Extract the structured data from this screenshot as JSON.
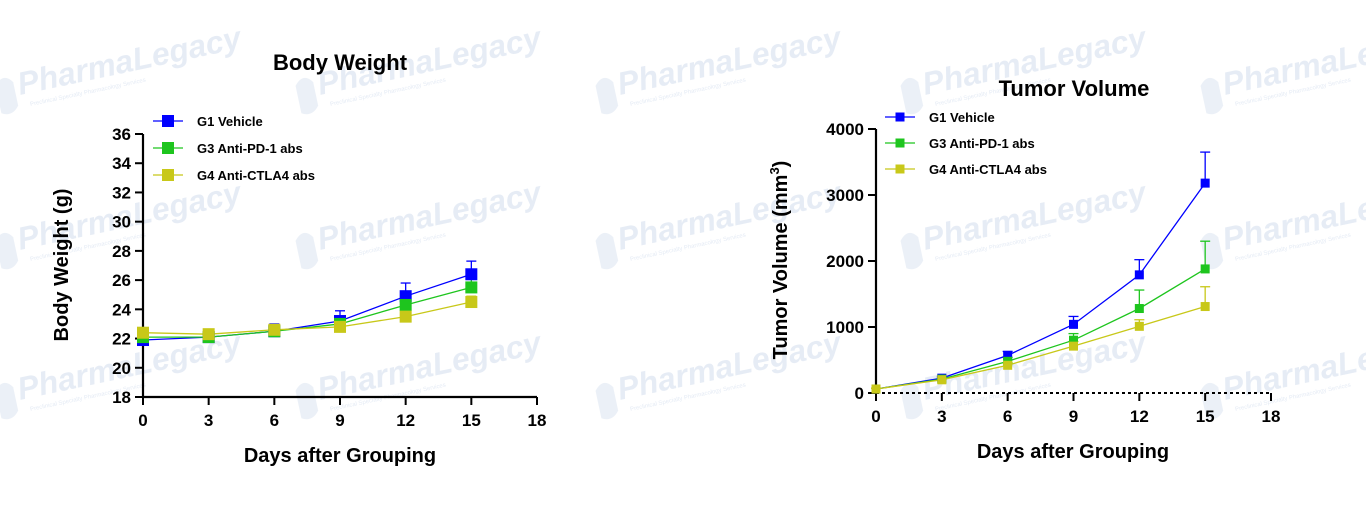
{
  "watermark": {
    "text": "PharmaLegacy",
    "subtext": "Preclinical Specialty Pharmacology Services"
  },
  "chart_data": [
    {
      "type": "line",
      "title": "Body Weight",
      "xlabel": "Days after Grouping",
      "ylabel": "Body Weight (g)",
      "xlim": [
        0,
        18
      ],
      "ylim": [
        18,
        36
      ],
      "xticks": [
        0,
        3,
        6,
        9,
        12,
        15,
        18
      ],
      "yticks": [
        18,
        20,
        22,
        24,
        26,
        28,
        30,
        32,
        34,
        36
      ],
      "legend_position": "top-left",
      "grid": false,
      "x": [
        0,
        3,
        6,
        9,
        12,
        15
      ],
      "series": [
        {
          "name": "G1 Vehicle",
          "color": "#0000ff",
          "values": [
            21.9,
            22.1,
            22.5,
            23.2,
            24.9,
            26.4
          ],
          "errors": [
            0.2,
            0.2,
            0.5,
            0.7,
            0.9,
            0.9
          ]
        },
        {
          "name": "G3 Anti-PD-1 abs",
          "color": "#1ec51e",
          "values": [
            22.1,
            22.1,
            22.5,
            23.0,
            24.3,
            25.5
          ],
          "errors": [
            0.2,
            0.2,
            0.3,
            0.4,
            0.5,
            0.6
          ]
        },
        {
          "name": "G4 Anti-CTLA4 abs",
          "color": "#c8c819",
          "values": [
            22.4,
            22.3,
            22.6,
            22.8,
            23.5,
            24.5
          ],
          "errors": [
            0.2,
            0.2,
            0.2,
            0.3,
            0.3,
            0.4
          ]
        }
      ]
    },
    {
      "type": "line",
      "title": "Tumor Volume",
      "xlabel": "Days after Grouping",
      "ylabel_main": "Tumor Volume (mm",
      "ylabel_sup": "3",
      "ylabel_end": ")",
      "xlim": [
        0,
        18
      ],
      "ylim": [
        0,
        4000
      ],
      "xticks": [
        0,
        3,
        6,
        9,
        12,
        15,
        18
      ],
      "yticks": [
        0,
        1000,
        2000,
        3000,
        4000
      ],
      "legend_position": "top-left",
      "grid": false,
      "x": [
        0,
        3,
        6,
        9,
        12,
        15
      ],
      "series": [
        {
          "name": "G1 Vehicle",
          "color": "#0000ff",
          "values": [
            60,
            225,
            570,
            1040,
            1790,
            3180
          ],
          "errors": [
            10,
            30,
            60,
            120,
            230,
            470
          ]
        },
        {
          "name": "G3 Anti-PD-1 abs",
          "color": "#1ec51e",
          "values": [
            60,
            210,
            480,
            800,
            1280,
            1880
          ],
          "errors": [
            10,
            25,
            60,
            100,
            280,
            420
          ]
        },
        {
          "name": "G4 Anti-CTLA4 abs",
          "color": "#c8c819",
          "values": [
            60,
            200,
            420,
            710,
            1010,
            1310
          ],
          "errors": [
            10,
            20,
            40,
            70,
            100,
            300
          ]
        }
      ]
    }
  ]
}
